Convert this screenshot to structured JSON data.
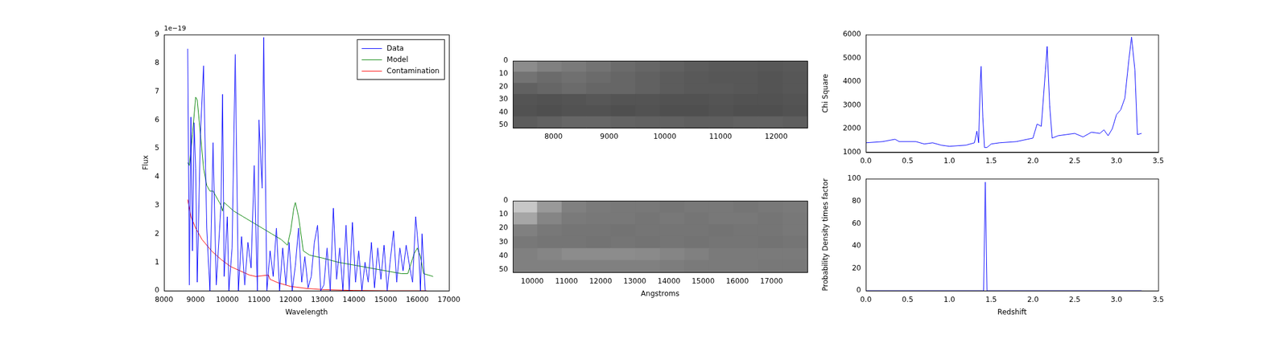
{
  "chart_data": [
    {
      "type": "line",
      "xlabel": "Wavelength",
      "ylabel": "Flux",
      "annotations": [
        {
          "text": "1e−19"
        }
      ],
      "legend": "upper right",
      "grid": false,
      "xlim": [
        8000,
        17000
      ],
      "xticks": [
        8000,
        9000,
        10000,
        11000,
        12000,
        13000,
        14000,
        15000,
        16000,
        17000
      ],
      "ylim": [
        0,
        9
      ],
      "yticks": [
        0,
        1,
        2,
        3,
        4,
        5,
        6,
        7,
        8,
        9
      ],
      "series": [
        {
          "name": "Data",
          "color": "#0000ff",
          "x": [
            8750,
            8800,
            8850,
            8900,
            8950,
            9000,
            9050,
            9150,
            9250,
            9350,
            9450,
            9550,
            9650,
            9800,
            9850,
            9900,
            10000,
            10050,
            10150,
            10250,
            10350,
            10450,
            10550,
            10650,
            10750,
            10850,
            10950,
            11000,
            11100,
            11150,
            11250,
            11350,
            11450,
            11550,
            11650,
            11750,
            11850,
            11950,
            12050,
            12150,
            12250,
            12350,
            12450,
            12550,
            12650,
            12750,
            12850,
            12950,
            13050,
            13150,
            13250,
            13350,
            13450,
            13550,
            13650,
            13750,
            13850,
            13950,
            14050,
            14150,
            14250,
            14350,
            14450,
            14550,
            14650,
            14750,
            14850,
            14950,
            15050,
            15150,
            15250,
            15350,
            15450,
            15550,
            15650,
            15750,
            15850,
            15950,
            16050,
            16100,
            16150,
            16250
          ],
          "values": [
            8.5,
            0.2,
            6.1,
            1.4,
            5.9,
            4.3,
            0.3,
            5.5,
            7.9,
            2.2,
            0,
            5.2,
            0.2,
            3.0,
            6.9,
            0.5,
            2.6,
            0,
            1.5,
            8.3,
            0,
            1.9,
            0.2,
            1.7,
            0.8,
            4.4,
            0,
            6.0,
            3.6,
            8.9,
            0,
            1.4,
            0.5,
            2.2,
            0,
            1.5,
            0.2,
            1.7,
            0,
            0.9,
            2.2,
            0.3,
            1.2,
            0.1,
            0.5,
            1.7,
            2.3,
            0,
            0.2,
            1.5,
            0,
            2.9,
            0.4,
            1.5,
            0,
            2.3,
            0,
            2.4,
            0.3,
            1.4,
            0,
            1.0,
            0.3,
            1.7,
            0.1,
            1.5,
            0.4,
            1.6,
            0,
            1.1,
            2.1,
            0.3,
            1.5,
            0.7,
            1.6,
            0.9,
            0.3,
            2.6,
            1.3,
            0,
            2.0,
            0
          ]
        },
        {
          "name": "Model",
          "color": "#008000",
          "x": [
            8750,
            8800,
            8900,
            9000,
            9050,
            9150,
            9250,
            9350,
            9450,
            9550,
            9700,
            9800,
            9850,
            9900,
            10000,
            10200,
            10500,
            10800,
            11100,
            11400,
            11700,
            11900,
            12000,
            12100,
            12150,
            12250,
            12400,
            12600,
            13000,
            13500,
            14000,
            14500,
            15000,
            15500,
            15700,
            15900,
            16000,
            16100,
            16200,
            16500
          ],
          "values": [
            4.5,
            4.4,
            5.5,
            6.8,
            6.7,
            5.5,
            4.3,
            3.7,
            3.5,
            3.5,
            3.2,
            3.0,
            2.8,
            3.1,
            3.0,
            2.8,
            2.6,
            2.4,
            2.2,
            2.0,
            1.8,
            1.6,
            2.1,
            2.9,
            3.1,
            2.6,
            1.4,
            1.25,
            1.15,
            1.0,
            0.9,
            0.8,
            0.7,
            0.6,
            0.6,
            1.3,
            1.5,
            1.2,
            0.6,
            0.5
          ]
        },
        {
          "name": "Contamination",
          "color": "#ff0000",
          "x": [
            8750,
            8850,
            9000,
            9200,
            9500,
            9800,
            10100,
            10400,
            10700,
            10900,
            11300,
            11350,
            11600,
            12000,
            12500,
            13000,
            14000,
            15000,
            16300
          ],
          "values": [
            3.2,
            2.6,
            2.2,
            1.8,
            1.4,
            1.1,
            0.85,
            0.7,
            0.55,
            0.5,
            0.55,
            0.4,
            0.28,
            0.15,
            0.08,
            0.04,
            0.01,
            0,
            0
          ]
        }
      ]
    },
    {
      "type": "heatmap",
      "grid": false,
      "xlim": [
        7270,
        12560
      ],
      "xticks": [
        8000,
        9000,
        10000,
        11000,
        12000
      ],
      "ylim": [
        52,
        0
      ],
      "yticks": [
        0,
        10,
        20,
        30,
        40,
        50
      ],
      "vlim": [
        0,
        1
      ],
      "cells": [
        [
          0.55,
          0.5,
          0.48,
          0.45,
          0.42,
          0.4,
          0.38,
          0.36,
          0.35,
          0.35,
          0.34,
          0.35
        ],
        [
          0.45,
          0.42,
          0.44,
          0.42,
          0.4,
          0.38,
          0.36,
          0.35,
          0.34,
          0.34,
          0.33,
          0.34
        ],
        [
          0.38,
          0.4,
          0.42,
          0.4,
          0.4,
          0.38,
          0.36,
          0.35,
          0.35,
          0.34,
          0.33,
          0.34
        ],
        [
          0.33,
          0.32,
          0.33,
          0.34,
          0.33,
          0.33,
          0.32,
          0.32,
          0.33,
          0.32,
          0.32,
          0.33
        ],
        [
          0.32,
          0.31,
          0.32,
          0.32,
          0.31,
          0.32,
          0.31,
          0.31,
          0.32,
          0.31,
          0.31,
          0.32
        ],
        [
          0.36,
          0.38,
          0.4,
          0.4,
          0.39,
          0.38,
          0.38,
          0.37,
          0.37,
          0.38,
          0.38,
          0.37
        ]
      ]
    },
    {
      "type": "heatmap",
      "xlabel": "Angstroms",
      "grid": false,
      "xlim": [
        9430,
        18050
      ],
      "xticks": [
        10000,
        11000,
        12000,
        13000,
        14000,
        15000,
        16000,
        17000
      ],
      "ylim": [
        52,
        0
      ],
      "yticks": [
        0,
        10,
        20,
        30,
        40,
        50
      ],
      "vlim": [
        0,
        1
      ],
      "cells": [
        [
          0.78,
          0.6,
          0.5,
          0.48,
          0.47,
          0.47,
          0.46,
          0.47,
          0.47,
          0.46,
          0.47,
          0.48
        ],
        [
          0.65,
          0.52,
          0.48,
          0.47,
          0.47,
          0.46,
          0.47,
          0.46,
          0.47,
          0.47,
          0.46,
          0.47
        ],
        [
          0.5,
          0.47,
          0.46,
          0.46,
          0.45,
          0.46,
          0.46,
          0.46,
          0.45,
          0.46,
          0.46,
          0.47
        ],
        [
          0.47,
          0.46,
          0.46,
          0.45,
          0.46,
          0.45,
          0.46,
          0.45,
          0.46,
          0.46,
          0.45,
          0.46
        ],
        [
          0.5,
          0.52,
          0.55,
          0.55,
          0.55,
          0.54,
          0.52,
          0.5,
          0.48,
          0.48,
          0.48,
          0.48
        ],
        [
          0.5,
          0.5,
          0.5,
          0.5,
          0.5,
          0.5,
          0.49,
          0.48,
          0.48,
          0.48,
          0.47,
          0.47
        ]
      ]
    },
    {
      "type": "line",
      "ylabel": "Chi Square",
      "grid": false,
      "xlim": [
        0,
        3.5
      ],
      "xticks": [
        {
          "value": 0,
          "label": "0.0"
        },
        0.5,
        {
          "value": 1,
          "label": "1.0"
        },
        1.5,
        {
          "value": 2,
          "label": "2.0"
        },
        2.5,
        {
          "value": 3,
          "label": "3.0"
        },
        3.5
      ],
      "ylim": [
        1000,
        6000
      ],
      "yticks": [
        1000,
        2000,
        3000,
        4000,
        5000,
        6000
      ],
      "series": [
        {
          "color": "#0000ff",
          "x": [
            0,
            0.2,
            0.35,
            0.4,
            0.6,
            0.7,
            0.8,
            0.9,
            1.0,
            1.2,
            1.3,
            1.33,
            1.35,
            1.37,
            1.38,
            1.4,
            1.42,
            1.45,
            1.5,
            1.6,
            1.8,
            2.0,
            2.05,
            2.1,
            2.15,
            2.17,
            2.2,
            2.23,
            2.3,
            2.5,
            2.6,
            2.7,
            2.8,
            2.85,
            2.9,
            2.95,
            3.0,
            3.05,
            3.1,
            3.15,
            3.18,
            3.22,
            3.25,
            3.3
          ],
          "values": [
            1400,
            1450,
            1550,
            1450,
            1450,
            1350,
            1400,
            1300,
            1250,
            1300,
            1400,
            1900,
            1400,
            4000,
            4650,
            2500,
            1200,
            1200,
            1350,
            1400,
            1450,
            1600,
            2200,
            2100,
            4500,
            5500,
            3000,
            1600,
            1700,
            1800,
            1650,
            1850,
            1800,
            1950,
            1700,
            2000,
            2600,
            2800,
            3300,
            5000,
            5900,
            4500,
            1750,
            1800
          ]
        }
      ]
    },
    {
      "type": "line",
      "xlabel": "Redshift",
      "ylabel": "Probability Density times factor",
      "grid": false,
      "xlim": [
        0,
        3.5
      ],
      "xticks": [
        {
          "value": 0,
          "label": "0.0"
        },
        0.5,
        {
          "value": 1,
          "label": "1.0"
        },
        1.5,
        {
          "value": 2,
          "label": "2.0"
        },
        2.5,
        {
          "value": 3,
          "label": "3.0"
        },
        3.5
      ],
      "ylim": [
        0,
        100
      ],
      "yticks": [
        0,
        20,
        40,
        60,
        80,
        100
      ],
      "series": [
        {
          "color": "#0000ff",
          "x": [
            0,
            1.41,
            1.43,
            1.45,
            3.3
          ],
          "values": [
            0,
            0,
            97,
            0,
            0
          ]
        }
      ]
    }
  ]
}
